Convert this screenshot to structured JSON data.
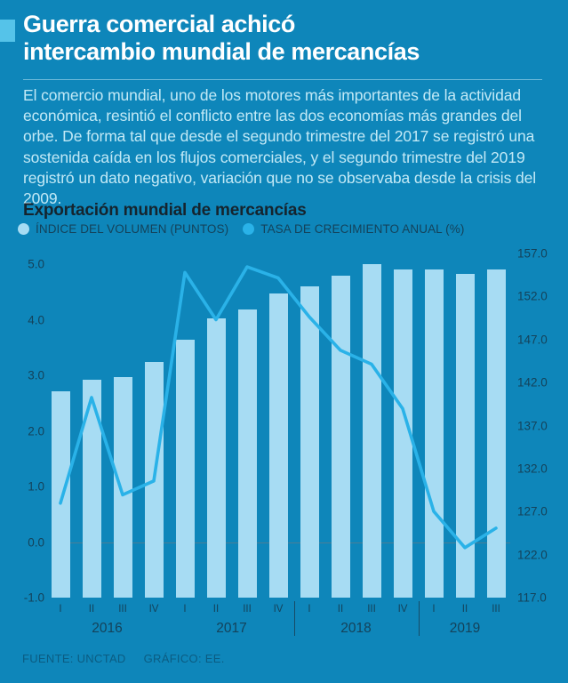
{
  "header": {
    "title_line1": "Guerra comercial achicó",
    "title_line2": "intercambio mundial de mercancías"
  },
  "intro": {
    "text": "El comercio mundial, uno de los motores más importantes de la actividad económica, resintió el conflicto entre las dos economías más grandes del orbe. De forma tal que desde el segundo trimestre del 2017 se registró una sostenida caída en los flujos comerciales, y el segundo trimestre del 2019 registró un dato negativo, variación que no se observaba desde la crisis del 2009."
  },
  "chart": {
    "title": "Exportación mundial de mercancías",
    "legend": [
      {
        "label": "ÍNDICE DEL VOLUMEN (PUNTOS)",
        "color": "#a7dcf3"
      },
      {
        "label": "TASA DE CRECIMIENTO ANUAL (%)",
        "color": "#2ab2e8"
      }
    ]
  },
  "chart_data": {
    "type": "bar+line dual-axis",
    "categories": [
      "2016-I",
      "2016-II",
      "2016-III",
      "2016-IV",
      "2017-I",
      "2017-II",
      "2017-III",
      "2017-IV",
      "2018-I",
      "2018-II",
      "2018-III",
      "2018-IV",
      "2019-I",
      "2019-II",
      "2019-III"
    ],
    "quarters": [
      "I",
      "II",
      "III",
      "IV",
      "I",
      "II",
      "III",
      "IV",
      "I",
      "II",
      "III",
      "IV",
      "I",
      "II",
      "III"
    ],
    "year_groups": [
      {
        "label": "2016",
        "quarters": 4
      },
      {
        "label": "2017",
        "quarters": 4
      },
      {
        "label": "2018",
        "quarters": 4
      },
      {
        "label": "2019",
        "quarters": 3
      }
    ],
    "year_dividers_after": [
      "2017",
      "2018"
    ],
    "series": [
      {
        "name": "ÍNDICE DEL VOLUMEN (PUNTOS)",
        "type": "bar",
        "axis": "right",
        "color": "#a7dcf3",
        "values": [
          141.0,
          142.3,
          142.6,
          144.4,
          147.0,
          149.5,
          150.5,
          152.4,
          153.2,
          154.4,
          155.8,
          155.1,
          155.1,
          154.6,
          155.1
        ]
      },
      {
        "name": "TASA DE CRECIMIENTO ANUAL (%)",
        "type": "line",
        "axis": "left",
        "color": "#2ab2e8",
        "values": [
          0.7,
          2.6,
          0.85,
          1.1,
          4.85,
          4.0,
          4.95,
          4.75,
          4.05,
          3.45,
          3.2,
          2.4,
          0.55,
          -0.1,
          0.25
        ]
      }
    ],
    "left_axis": {
      "min": -1.0,
      "max": 5.0,
      "ticks": [
        "5.0",
        "4.0",
        "3.0",
        "2.0",
        "1.0",
        "0.0",
        "-1.0"
      ]
    },
    "right_axis": {
      "min": 117.0,
      "max": 157.0,
      "ticks": [
        "157.0",
        "152.0",
        "147.0",
        "142.0",
        "137.0",
        "132.0",
        "127.0",
        "122.0",
        "117.0"
      ]
    },
    "gridline_at_left_value": 0.0,
    "legend_position": "top-left",
    "grid": "single zero line only"
  },
  "footer": {
    "source": "FUENTE: UNCTAD",
    "credit": "GRÁFICO: EE."
  },
  "colors": {
    "background": "#0e86ba",
    "bar": "#a7dcf3",
    "line": "#2ab2e8",
    "accent_marker": "#55c3e9",
    "title": "#ffffff",
    "body_text": "#c2e9f6",
    "dark_text": "#15242e",
    "axis_text": "#14425a",
    "muted_text": "#0b5c82",
    "gridline": "#4a7e97",
    "divider": "#164b66"
  }
}
